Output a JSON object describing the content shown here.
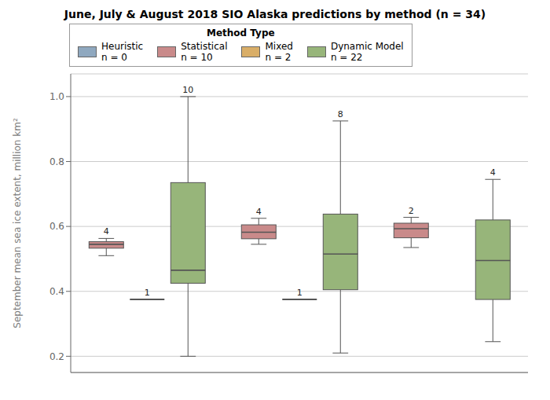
{
  "chart_data": {
    "type": "box",
    "title": "June, July & August 2018 SIO Alaska predictions by method (n = 34)",
    "y_label": "September mean sea ice extent, million km²",
    "categories": [
      null,
      null,
      null
    ],
    "ylim": [
      0.15,
      1.07
    ],
    "yticks": [
      0.2,
      0.4,
      0.6,
      0.8,
      {
        "value": 1.0,
        "label": "1.0"
      }
    ],
    "grid": true,
    "tick_labels": "y",
    "legend": "top left",
    "legend_title": "Method Type",
    "series": [
      {
        "name": "Heuristic\nn = 0",
        "color": "#8fa8bf",
        "values": [
          null,
          null,
          null
        ],
        "n": [
          null,
          null,
          null
        ]
      },
      {
        "name": "Statistical\nn = 10",
        "color": "#c98a8a",
        "values": [
          {
            "whislo": 0.51,
            "q1": 0.533,
            "med": 0.545,
            "q3": 0.553,
            "whishi": 0.563
          },
          {
            "whislo": 0.545,
            "q1": 0.562,
            "med": 0.582,
            "q3": 0.605,
            "whishi": 0.625
          },
          {
            "whislo": 0.535,
            "q1": 0.565,
            "med": 0.593,
            "q3": 0.61,
            "whishi": 0.628
          }
        ],
        "n": [
          4,
          4,
          2
        ]
      },
      {
        "name": "Mixed\nn = 2",
        "color": "#d9ae68",
        "values": [
          {
            "whislo": 0.375,
            "q1": 0.375,
            "med": 0.375,
            "q3": 0.375,
            "whishi": 0.375
          },
          {
            "whislo": 0.375,
            "q1": 0.375,
            "med": 0.375,
            "q3": 0.375,
            "whishi": 0.375
          },
          null
        ],
        "n": [
          1,
          1,
          null
        ]
      },
      {
        "name": "Dynamic Model\nn = 22",
        "color": "#97b57a",
        "values": [
          {
            "whislo": 0.2,
            "q1": 0.425,
            "med": 0.465,
            "q3": 0.735,
            "whishi": 1.0
          },
          {
            "whislo": 0.21,
            "q1": 0.405,
            "med": 0.515,
            "q3": 0.638,
            "whishi": 0.925
          },
          {
            "whislo": 0.245,
            "q1": 0.375,
            "med": 0.495,
            "q3": 0.62,
            "whishi": 0.745
          }
        ],
        "n": [
          10,
          8,
          4
        ]
      }
    ]
  }
}
